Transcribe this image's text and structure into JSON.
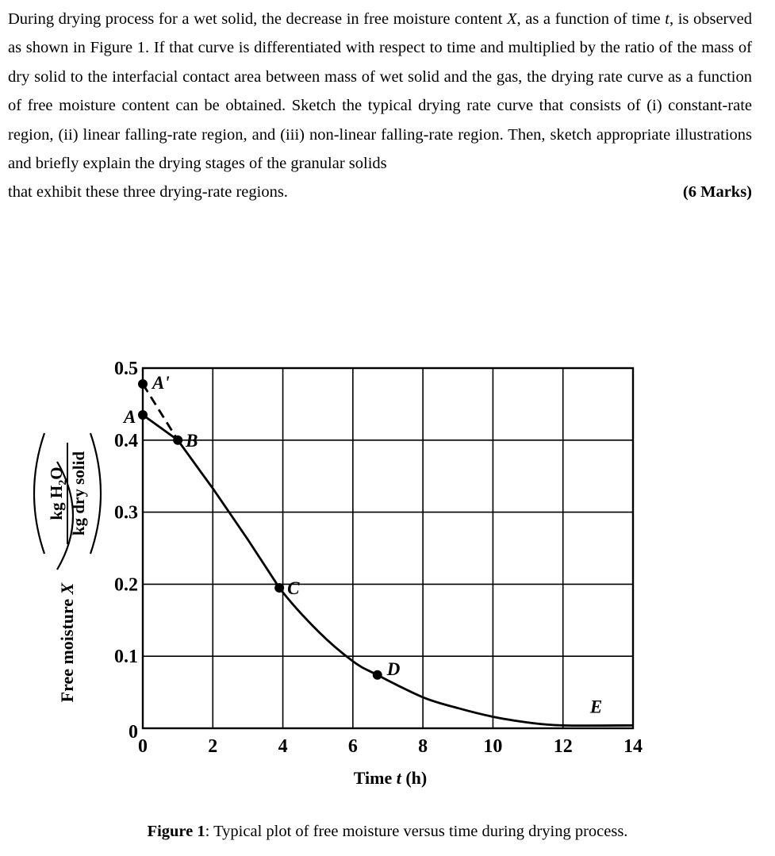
{
  "question": {
    "paragraph_part1": "During drying process for a wet solid, the decrease in free moisture content ",
    "var_X": "X",
    "paragraph_part2": ", as a function of time ",
    "var_t": "t",
    "paragraph_part3": ", is observed as shown in Figure 1. If that curve is differentiated with respect to time and multiplied by the ratio of the mass of dry solid to the interfacial contact area between mass of wet solid and the gas, the drying rate curve as a function of free moisture content can be obtained. Sketch the typical drying rate curve that consists of (i) constant-rate region, (ii) linear falling-rate region, and (iii) non-linear falling-rate region. Then, sketch appropriate illustrations and briefly explain the drying stages of the granular solids",
    "last_line": "that exhibit these three drying-rate regions.",
    "marks": "(6 Marks)"
  },
  "figure": {
    "caption_label": "Figure 1",
    "caption_text": ": Typical plot of free moisture versus time during drying process."
  },
  "chart_data": {
    "type": "line",
    "title": "",
    "xlabel": "Time t (h)",
    "ylabel": "Free moisture X (kg H2O / kg dry solid)",
    "xlim": [
      0,
      14
    ],
    "ylim": [
      0,
      0.5
    ],
    "grid": true,
    "x_ticks": [
      "0",
      "2",
      "4",
      "6",
      "8",
      "10",
      "12",
      "14"
    ],
    "y_ticks": [
      "0",
      "0.1",
      "0.2",
      "0.3",
      "0.4",
      "0.5"
    ],
    "series": [
      {
        "name": "Drying curve (solid)",
        "style": "solid",
        "x": [
          0,
          1.0,
          2.0,
          3.0,
          3.9,
          5.0,
          6.0,
          6.7,
          8.0,
          9.0,
          10.0,
          11.0,
          12.0,
          14.0
        ],
        "y": [
          0.435,
          0.4,
          0.333,
          0.262,
          0.195,
          0.135,
          0.093,
          0.074,
          0.043,
          0.028,
          0.016,
          0.008,
          0.004,
          0.004
        ]
      },
      {
        "name": "Extrapolation A'–B (dashed)",
        "style": "dashed",
        "x": [
          0,
          1.0
        ],
        "y": [
          0.478,
          0.4
        ]
      }
    ],
    "points": [
      {
        "label": "A'",
        "x": 0,
        "y": 0.478
      },
      {
        "label": "A",
        "x": 0,
        "y": 0.435
      },
      {
        "label": "B",
        "x": 1.0,
        "y": 0.4
      },
      {
        "label": "C",
        "x": 3.9,
        "y": 0.195
      },
      {
        "label": "D",
        "x": 6.7,
        "y": 0.074
      },
      {
        "label": "E",
        "x": 13.0,
        "y": 0.004,
        "marker": false
      }
    ],
    "annotations": [
      "A'",
      "A",
      "B",
      "C",
      "D",
      "E"
    ],
    "legend": "none"
  }
}
